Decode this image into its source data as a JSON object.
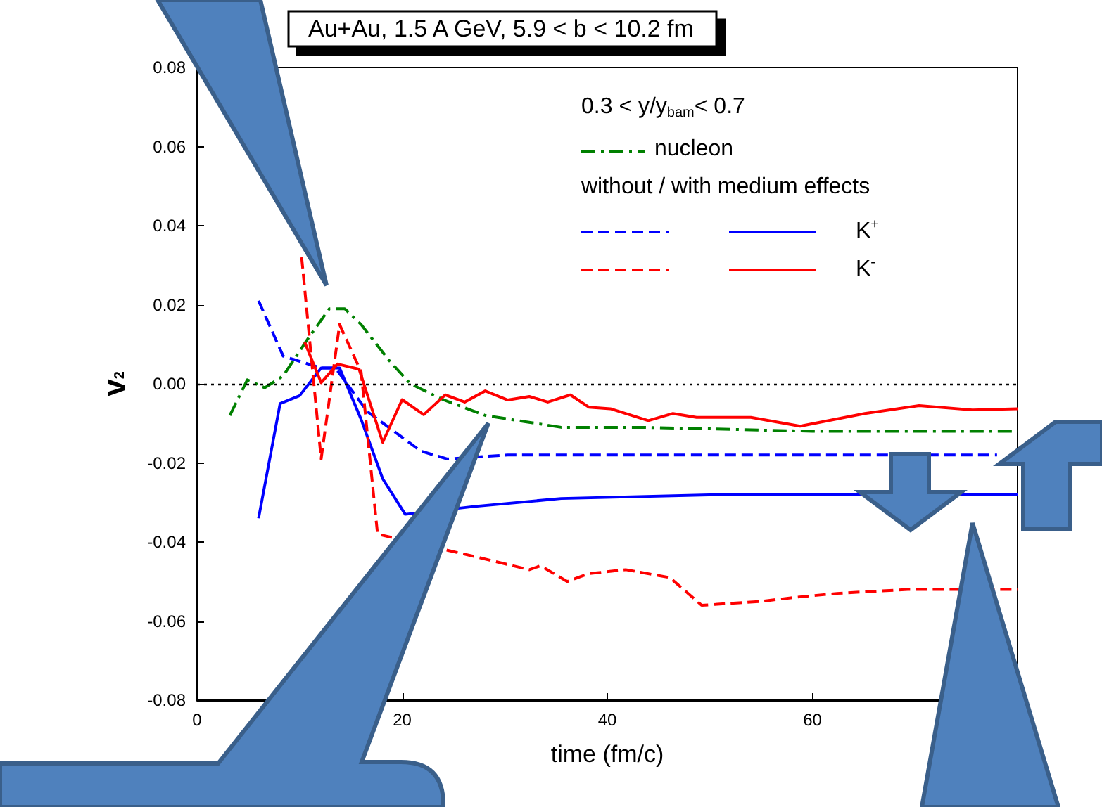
{
  "chart_data": {
    "type": "line",
    "title": "Au+Au, 1.5 A GeV, 5.9 < b < 10.2 fm",
    "xlabel": "time (fm/c)",
    "ylabel": "v$_{2}$",
    "legend_title": "0.3 < y/y$_{bam}$< 0.7",
    "annotations": [
      "without / with medium effects"
    ],
    "xlim": [
      0,
      80
    ],
    "xticks": [
      0,
      20,
      40,
      60
    ],
    "ylim": [
      -0.08,
      0.08
    ],
    "yticks": [
      {
        "value": -0.08,
        "label": "-0.08"
      },
      {
        "value": -0.06,
        "label": "-0.06"
      },
      {
        "value": -0.04,
        "label": "-0.04"
      },
      {
        "value": -0.02,
        "label": "-0.02"
      },
      {
        "value": 0,
        "label": "0.00"
      },
      {
        "value": 0.02,
        "label": "0.02"
      },
      {
        "value": 0.04,
        "label": "0.04"
      },
      {
        "value": 0.06,
        "label": "0.06"
      },
      {
        "value": 0.08,
        "label": "0.08"
      }
    ],
    "grid": false,
    "legend": "top right",
    "marker": "none",
    "ref_lines": [
      {
        "axis": "y",
        "value": 0,
        "label": null,
        "color": "#000000",
        "line_style": "dotted"
      }
    ],
    "series": [
      {
        "name": "nucleon",
        "color": "#008000",
        "line_style": "dashdot",
        "x": [
          3.2,
          4.9,
          6.6,
          8.4,
          10.7,
          12.9,
          14.4,
          16,
          18.7,
          20.8,
          24,
          28.1,
          35.5,
          43.5,
          60,
          80
        ],
        "values": [
          -0.008,
          0.001,
          -0.001,
          0.002,
          0.011,
          0.019,
          0.019,
          0.015,
          0.006,
          0,
          -0.004,
          -0.008,
          -0.011,
          -0.011,
          -0.012,
          -0.012
        ]
      },
      {
        "color": "#0000ff",
        "line_style": "dashed",
        "x": [
          6,
          8.4,
          12.1,
          13.5,
          16.6,
          21.8,
          24.4,
          30.3,
          50,
          78
        ],
        "values": [
          0.021,
          0.007,
          0.004,
          0.004,
          -0.007,
          -0.017,
          -0.019,
          -0.018,
          -0.018,
          -0.018
        ]
      },
      {
        "name": "K$^{+}$",
        "color": "#0000ff",
        "line_style": "solid",
        "x": [
          6,
          8.1,
          10,
          12.1,
          13.9,
          16,
          18.1,
          20.3,
          27.1,
          35.5,
          51.4,
          80
        ],
        "values": [
          -0.034,
          -0.005,
          -0.003,
          0.004,
          0.004,
          -0.009,
          -0.024,
          -0.033,
          -0.031,
          -0.029,
          -0.028,
          -0.028
        ]
      },
      {
        "color": "#ff0000",
        "line_style": "dashed",
        "x": [
          10.2,
          12.1,
          13.9,
          16,
          17.6,
          27.6,
          32.4,
          33.5,
          36.1,
          38.2,
          41.8,
          46.1,
          49.2,
          55.1,
          58.3,
          62.4,
          69.3,
          73.5,
          80
        ],
        "values": [
          0.032,
          -0.019,
          0.015,
          0.003,
          -0.038,
          -0.044,
          -0.047,
          -0.046,
          -0.05,
          -0.048,
          -0.047,
          -0.049,
          -0.056,
          -0.055,
          -0.054,
          -0.053,
          -0.052,
          -0.052,
          -0.052
        ]
      },
      {
        "name": "K$^{-}$",
        "color": "#ff0000",
        "line_style": "solid",
        "x": [
          10.5,
          12.1,
          13.7,
          15.8,
          18.1,
          20,
          22.1,
          24.2,
          26.1,
          28.1,
          30.3,
          32.4,
          34.2,
          36.4,
          38.2,
          40.3,
          44,
          46.4,
          48.7,
          54,
          58.8,
          65.1,
          70.4,
          75.6,
          80
        ],
        "values": [
          0.0105,
          0.0003,
          0.005,
          0.0037,
          -0.0148,
          -0.004,
          -0.0078,
          -0.0028,
          -0.0046,
          -0.0018,
          -0.0041,
          -0.0032,
          -0.0046,
          -0.0028,
          -0.0059,
          -0.0063,
          -0.0093,
          -0.0075,
          -0.0085,
          -0.0085,
          -0.0107,
          -0.0075,
          -0.0055,
          -0.0066,
          -0.0063
        ]
      }
    ]
  }
}
